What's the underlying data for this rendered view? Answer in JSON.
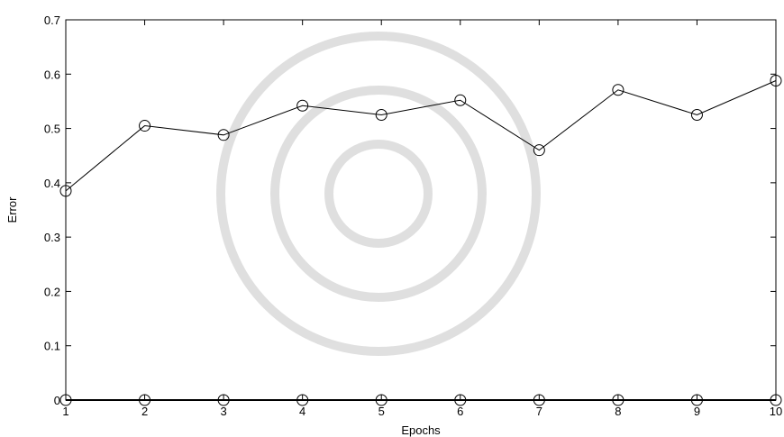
{
  "chart_data": {
    "type": "line",
    "title": "",
    "xlabel": "Epochs",
    "ylabel": "Error",
    "xlim": [
      1,
      10
    ],
    "ylim": [
      0,
      0.7
    ],
    "xticks": [
      1,
      2,
      3,
      4,
      5,
      6,
      7,
      8,
      9,
      10
    ],
    "yticks": [
      0,
      0.1,
      0.2,
      0.3,
      0.4,
      0.5,
      0.6,
      0.7
    ],
    "grid": false,
    "legend": "none",
    "marker": "circle",
    "line_color": "#000000",
    "series": [
      {
        "x": [
          1,
          2,
          3,
          4,
          5,
          6,
          7,
          8,
          9,
          10
        ],
        "values": [
          0.385,
          0.505,
          0.488,
          0.542,
          0.525,
          0.552,
          0.46,
          0.571,
          0.525,
          0.588
        ]
      },
      {
        "x": [
          1,
          2,
          3,
          4,
          5,
          6,
          7,
          8,
          9,
          10
        ],
        "values": [
          0,
          0,
          0,
          0,
          0,
          0,
          0,
          0,
          0,
          0
        ]
      }
    ]
  }
}
